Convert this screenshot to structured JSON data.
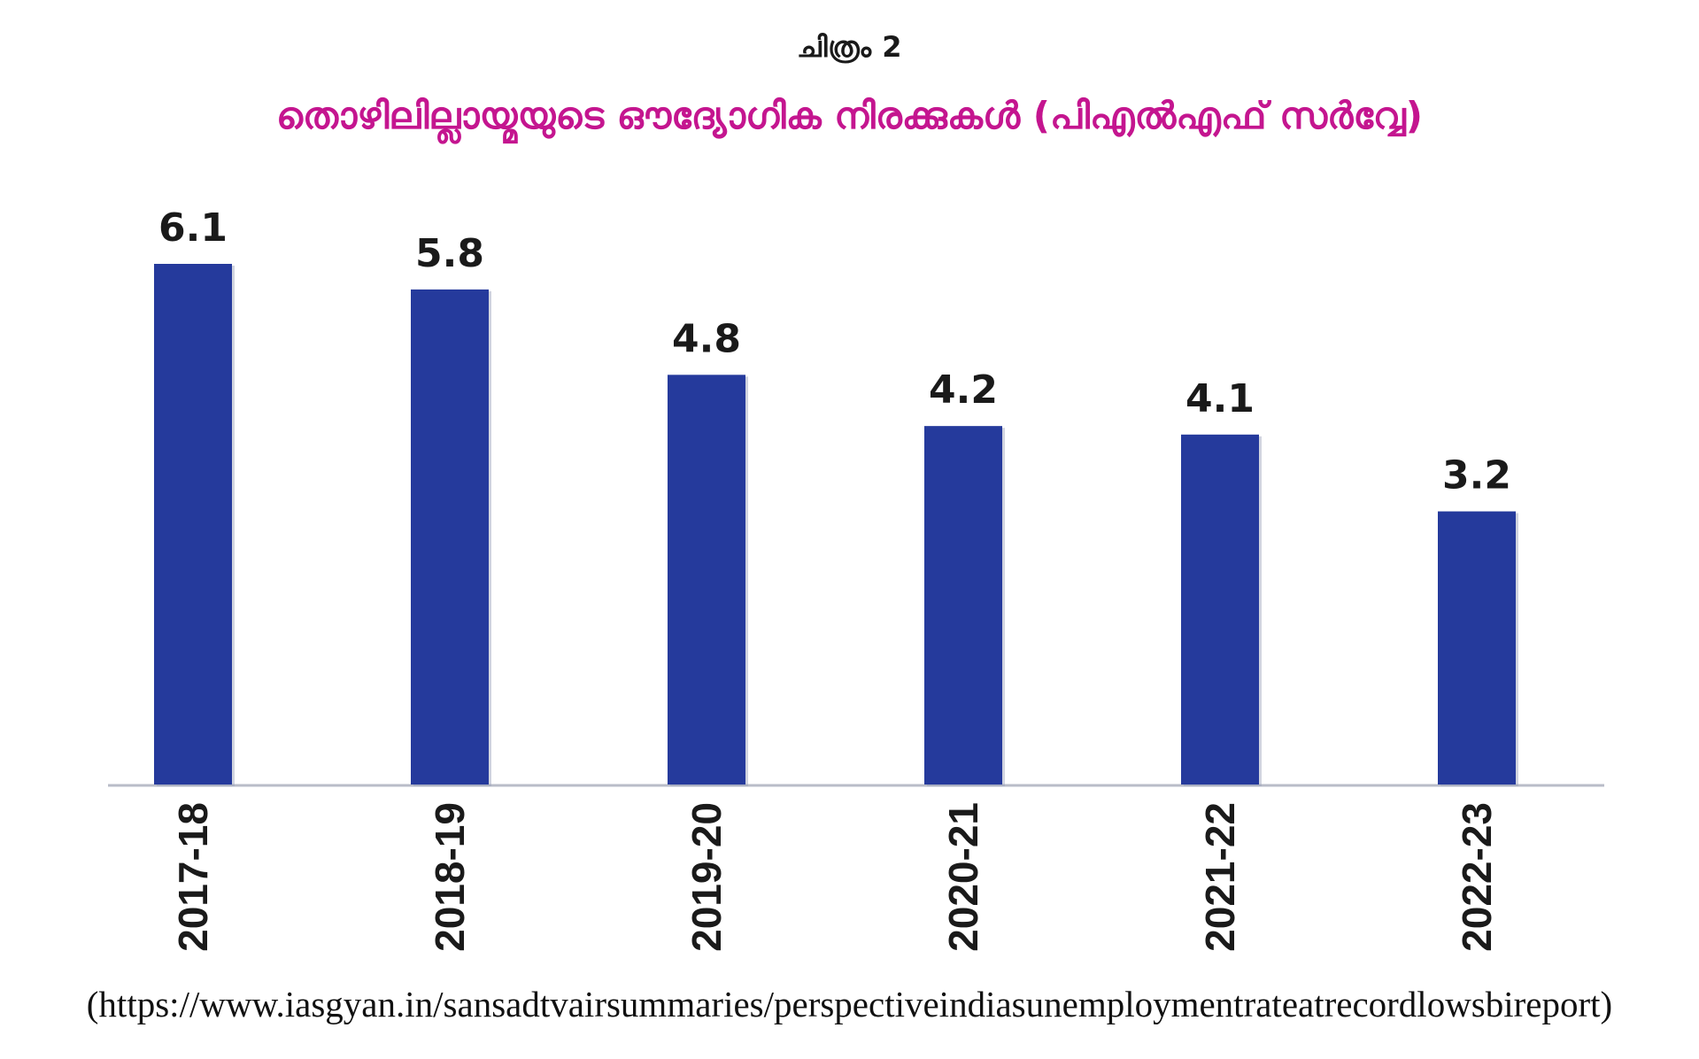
{
  "figure_label": "ചിത്രം 2",
  "source_note": "(https://www.iasgyan.in/sansadtvairsummaries/perspectiveindiasunemploymentrateatrecordlowsbireport)",
  "colors": {
    "bar": "#253a9c",
    "bar_shadow": "#9aa0b8",
    "axis": "#b9bcc8",
    "title": "#c4158f",
    "text": "#1a1a1a"
  },
  "chart_data": {
    "type": "bar",
    "title": "തൊഴിലില്ലായ്മയുടെ ഔദ്യോഗിക നിരക്കുകൾ (പിഎൽഎഫ് സർവ്വേ)",
    "categories": [
      "2017-18",
      "2018-19",
      "2019-20",
      "2020-21",
      "2021-22",
      "2022-23"
    ],
    "values": [
      6.1,
      5.8,
      4.8,
      4.2,
      4.1,
      3.2
    ],
    "data_labels": [
      "6.1",
      "5.8",
      "4.8",
      "4.2",
      "4.1",
      "3.2"
    ],
    "ylim": [
      0,
      6.1
    ],
    "grid": false,
    "legend": "none"
  }
}
